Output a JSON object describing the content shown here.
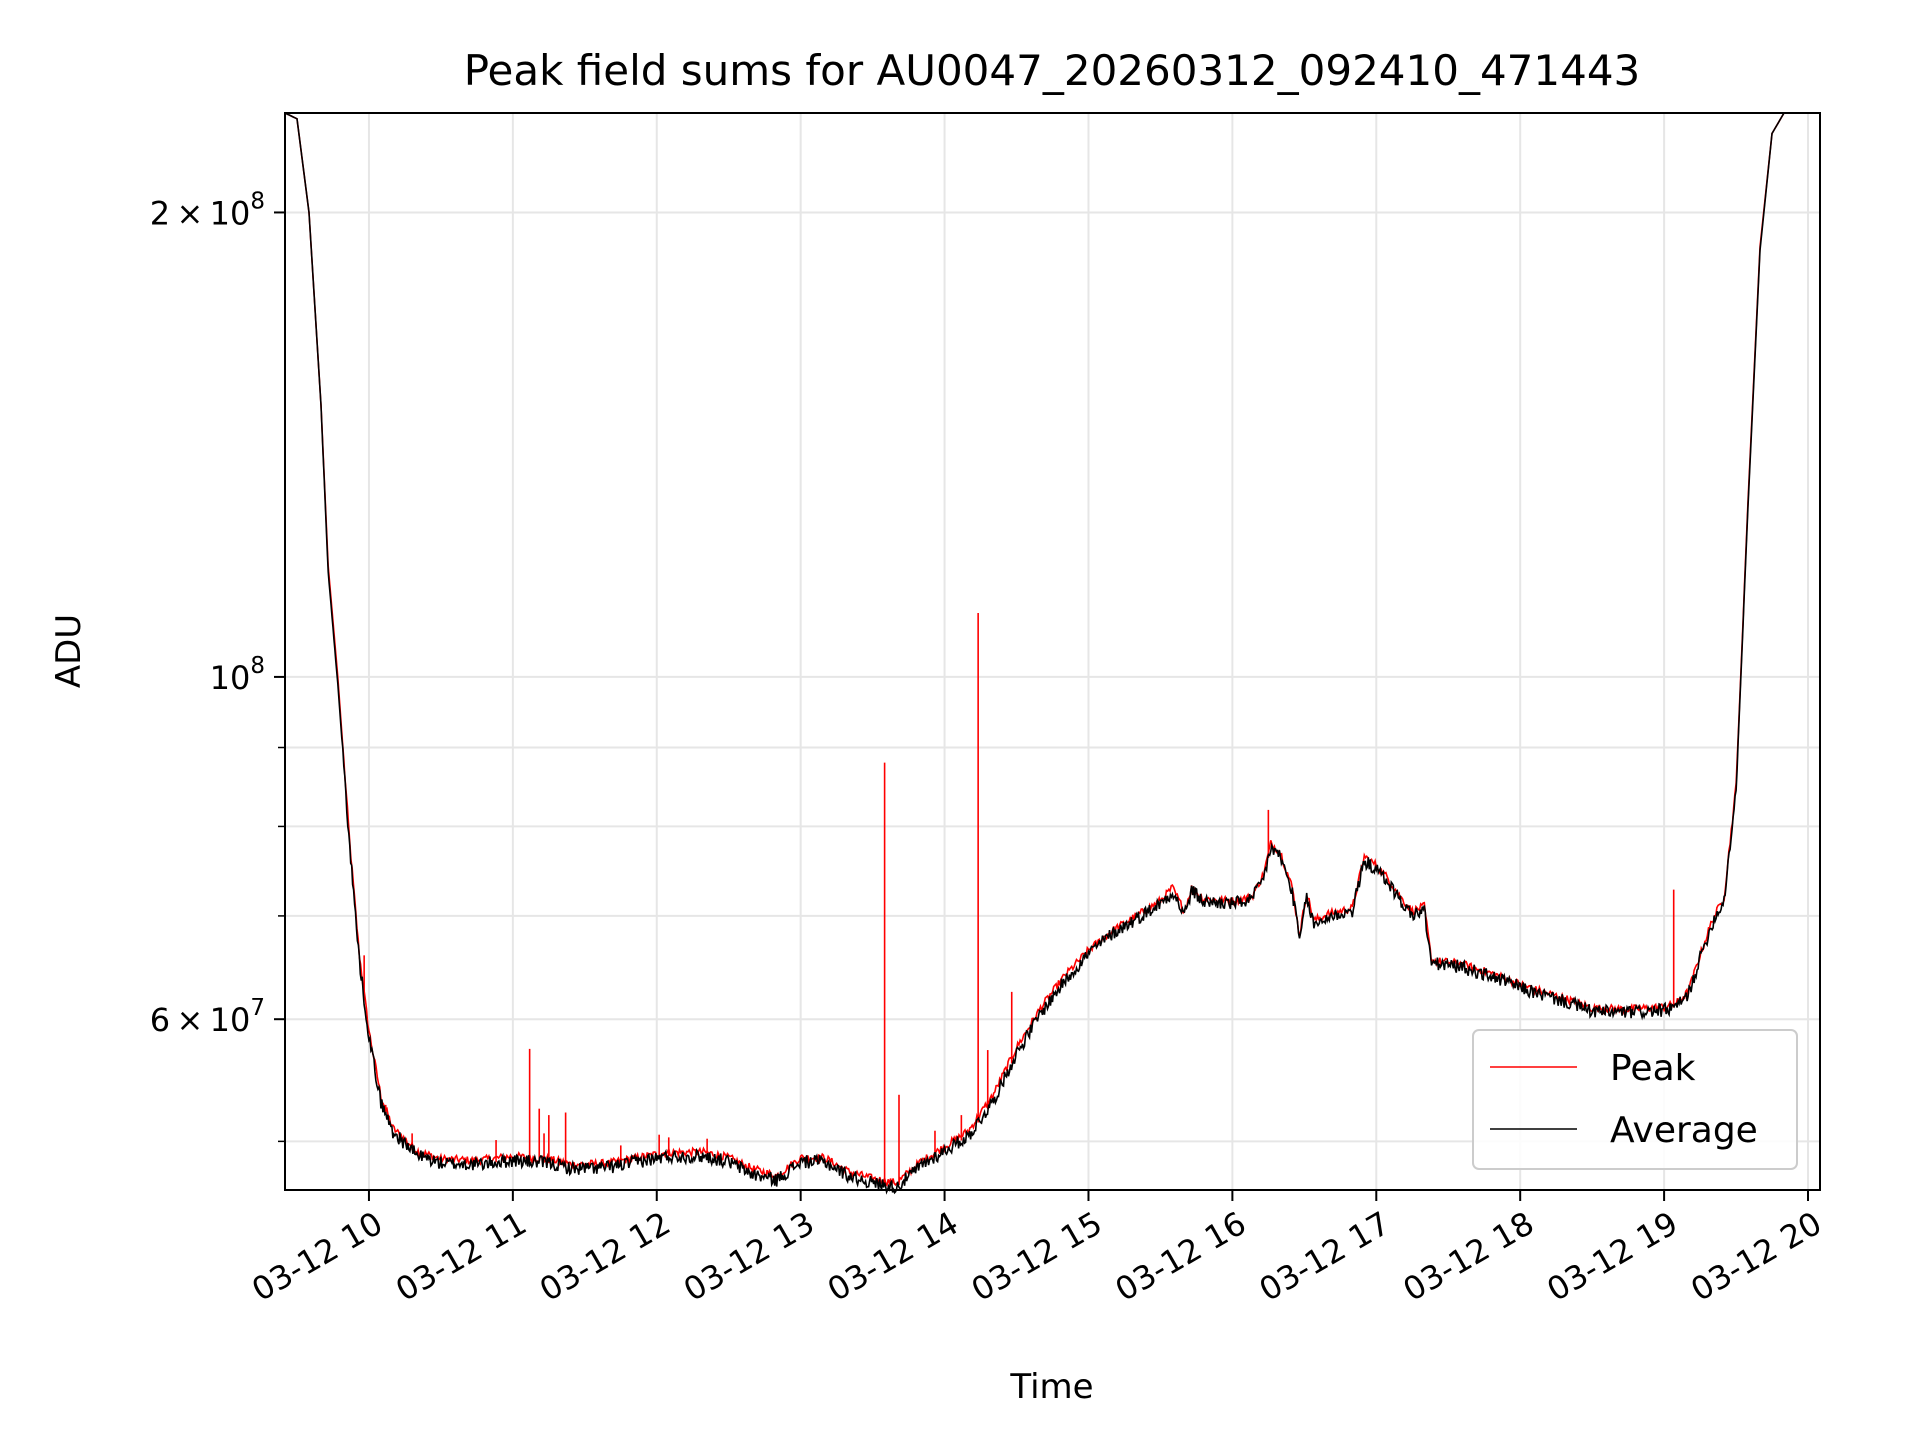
{
  "chart_data": {
    "type": "line",
    "title": "Peak field sums for AU0047_20260312_092410_471443",
    "xlabel": "Time",
    "ylabel": "ADU",
    "x_axis": {
      "kind": "datetime",
      "range": [
        "2026-03-12 09:25",
        "2026-03-12 20:05"
      ],
      "tick_values": [
        "2026-03-12 10:00",
        "2026-03-12 11:00",
        "2026-03-12 12:00",
        "2026-03-12 13:00",
        "2026-03-12 14:00",
        "2026-03-12 15:00",
        "2026-03-12 16:00",
        "2026-03-12 17:00",
        "2026-03-12 18:00",
        "2026-03-12 19:00",
        "2026-03-12 20:00"
      ],
      "tick_labels": [
        "03-12 10",
        "03-12 11",
        "03-12 12",
        "03-12 13",
        "03-12 14",
        "03-12 15",
        "03-12 16",
        "03-12 17",
        "03-12 18",
        "03-12 19",
        "03-12 20"
      ]
    },
    "y_axis": {
      "scale": "log",
      "range": [
        46500000,
        232000000
      ],
      "major_ticks": [
        60000000,
        100000000,
        200000000
      ],
      "major_tick_labels": [
        {
          "mant": "6",
          "exp": "7"
        },
        {
          "mant": "",
          "exp": "8"
        },
        {
          "mant": "2",
          "exp": "8"
        }
      ],
      "minor_ticks": [
        50000000,
        70000000,
        80000000,
        90000000
      ]
    },
    "grid": true,
    "legend": "lower right",
    "series": [
      {
        "name": "Peak",
        "color": "#ff0000",
        "points": [
          [
            "2026-03-12 09:25",
            232000000
          ],
          [
            "2026-03-12 09:30",
            230000000
          ],
          [
            "2026-03-12 09:35",
            200000000
          ],
          [
            "2026-03-12 09:40",
            150000000
          ],
          [
            "2026-03-12 09:43",
            118000000
          ],
          [
            "2026-03-12 09:47",
            100000000
          ],
          [
            "2026-03-12 09:52",
            78000000
          ],
          [
            "2026-03-12 09:56",
            66000000
          ],
          [
            "2026-03-12 10:00",
            59000000
          ],
          [
            "2026-03-12 10:05",
            53500000
          ],
          [
            "2026-03-12 10:10",
            51000000
          ],
          [
            "2026-03-12 10:20",
            49300000
          ],
          [
            "2026-03-12 10:30",
            48700000
          ],
          [
            "2026-03-12 10:45",
            48600000
          ],
          [
            "2026-03-12 11:00",
            48900000
          ],
          [
            "2026-03-12 11:15",
            48700000
          ],
          [
            "2026-03-12 11:25",
            48300000
          ],
          [
            "2026-03-12 11:40",
            48400000
          ],
          [
            "2026-03-12 11:55",
            48900000
          ],
          [
            "2026-03-12 12:05",
            49200000
          ],
          [
            "2026-03-12 12:20",
            49200000
          ],
          [
            "2026-03-12 12:30",
            48800000
          ],
          [
            "2026-03-12 12:40",
            48000000
          ],
          [
            "2026-03-12 12:50",
            47500000
          ],
          [
            "2026-03-12 13:00",
            48800000
          ],
          [
            "2026-03-12 13:10",
            48800000
          ],
          [
            "2026-03-12 13:20",
            47800000
          ],
          [
            "2026-03-12 13:30",
            47300000
          ],
          [
            "2026-03-12 13:40",
            47000000
          ],
          [
            "2026-03-12 13:50",
            48500000
          ],
          [
            "2026-03-12 14:00",
            49600000
          ],
          [
            "2026-03-12 14:10",
            50800000
          ],
          [
            "2026-03-12 14:20",
            53500000
          ],
          [
            "2026-03-12 14:30",
            57500000
          ],
          [
            "2026-03-12 14:40",
            61000000
          ],
          [
            "2026-03-12 14:50",
            64000000
          ],
          [
            "2026-03-12 15:00",
            66500000
          ],
          [
            "2026-03-12 15:10",
            68500000
          ],
          [
            "2026-03-12 15:20",
            70000000
          ],
          [
            "2026-03-12 15:30",
            71600000
          ],
          [
            "2026-03-12 15:35",
            73000000
          ],
          [
            "2026-03-12 15:40",
            70500000
          ],
          [
            "2026-03-12 15:43",
            73000000
          ],
          [
            "2026-03-12 15:48",
            71800000
          ],
          [
            "2026-03-12 16:00",
            71600000
          ],
          [
            "2026-03-12 16:08",
            72000000
          ],
          [
            "2026-03-12 16:13",
            74500000
          ],
          [
            "2026-03-12 16:16",
            78000000
          ],
          [
            "2026-03-12 16:20",
            77000000
          ],
          [
            "2026-03-12 16:25",
            73000000
          ],
          [
            "2026-03-12 16:28",
            68000000
          ],
          [
            "2026-03-12 16:31",
            72500000
          ],
          [
            "2026-03-12 16:34",
            69500000
          ],
          [
            "2026-03-12 16:40",
            70200000
          ],
          [
            "2026-03-12 16:50",
            70800000
          ],
          [
            "2026-03-12 16:55",
            76500000
          ],
          [
            "2026-03-12 17:00",
            75500000
          ],
          [
            "2026-03-12 17:05",
            74000000
          ],
          [
            "2026-03-12 17:10",
            72000000
          ],
          [
            "2026-03-12 17:15",
            70500000
          ],
          [
            "2026-03-12 17:20",
            71000000
          ],
          [
            "2026-03-12 17:23",
            65500000
          ],
          [
            "2026-03-12 17:35",
            65200000
          ],
          [
            "2026-03-12 17:50",
            64100000
          ],
          [
            "2026-03-12 18:05",
            62800000
          ],
          [
            "2026-03-12 18:20",
            61800000
          ],
          [
            "2026-03-12 18:30",
            61000000
          ],
          [
            "2026-03-12 18:45",
            60900000
          ],
          [
            "2026-03-12 19:00",
            61100000
          ],
          [
            "2026-03-12 19:05",
            61400000
          ],
          [
            "2026-03-12 19:10",
            62500000
          ],
          [
            "2026-03-12 19:15",
            66000000
          ],
          [
            "2026-03-12 19:20",
            69500000
          ],
          [
            "2026-03-12 19:25",
            72000000
          ],
          [
            "2026-03-12 19:30",
            85000000
          ],
          [
            "2026-03-12 19:35",
            130000000
          ],
          [
            "2026-03-12 19:40",
            190000000
          ],
          [
            "2026-03-12 19:45",
            225000000
          ],
          [
            "2026-03-12 19:50",
            232000000
          ],
          [
            "2026-03-12 20:05",
            232000000
          ]
        ],
        "spikes": [
          [
            "2026-03-12 09:58",
            66000000
          ],
          [
            "2026-03-12 10:07",
            52800000
          ],
          [
            "2026-03-12 10:18",
            50600000
          ],
          [
            "2026-03-12 10:53",
            50100000
          ],
          [
            "2026-03-12 11:07",
            57400000
          ],
          [
            "2026-03-12 11:11",
            52500000
          ],
          [
            "2026-03-12 11:13",
            50600000
          ],
          [
            "2026-03-12 11:15",
            52000000
          ],
          [
            "2026-03-12 11:22",
            52200000
          ],
          [
            "2026-03-12 11:45",
            49700000
          ],
          [
            "2026-03-12 12:01",
            50500000
          ],
          [
            "2026-03-12 12:05",
            50300000
          ],
          [
            "2026-03-12 12:21",
            50200000
          ],
          [
            "2026-03-12 13:35",
            88000000
          ],
          [
            "2026-03-12 13:41",
            53600000
          ],
          [
            "2026-03-12 13:56",
            50800000
          ],
          [
            "2026-03-12 14:07",
            52000000
          ],
          [
            "2026-03-12 14:14",
            110000000
          ],
          [
            "2026-03-12 14:18",
            57300000
          ],
          [
            "2026-03-12 14:28",
            62500000
          ],
          [
            "2026-03-12 16:15",
            82000000
          ],
          [
            "2026-03-12 19:04",
            72800000
          ]
        ]
      },
      {
        "name": "Average",
        "color": "#000000",
        "points": [
          [
            "2026-03-12 09:25",
            232000000
          ],
          [
            "2026-03-12 09:30",
            230000000
          ],
          [
            "2026-03-12 09:35",
            200000000
          ],
          [
            "2026-03-12 09:40",
            150000000
          ],
          [
            "2026-03-12 09:43",
            117000000
          ],
          [
            "2026-03-12 09:47",
            99000000
          ],
          [
            "2026-03-12 09:52",
            77500000
          ],
          [
            "2026-03-12 09:56",
            65500000
          ],
          [
            "2026-03-12 10:00",
            58500000
          ],
          [
            "2026-03-12 10:05",
            53000000
          ],
          [
            "2026-03-12 10:10",
            50700000
          ],
          [
            "2026-03-12 10:20",
            49000000
          ],
          [
            "2026-03-12 10:30",
            48400000
          ],
          [
            "2026-03-12 10:45",
            48300000
          ],
          [
            "2026-03-12 11:00",
            48600000
          ],
          [
            "2026-03-12 11:15",
            48400000
          ],
          [
            "2026-03-12 11:25",
            48000000
          ],
          [
            "2026-03-12 11:40",
            48100000
          ],
          [
            "2026-03-12 11:55",
            48600000
          ],
          [
            "2026-03-12 12:05",
            48900000
          ],
          [
            "2026-03-12 12:20",
            48900000
          ],
          [
            "2026-03-12 12:30",
            48500000
          ],
          [
            "2026-03-12 12:40",
            47600000
          ],
          [
            "2026-03-12 12:50",
            47200000
          ],
          [
            "2026-03-12 13:00",
            48500000
          ],
          [
            "2026-03-12 13:10",
            48500000
          ],
          [
            "2026-03-12 13:20",
            47500000
          ],
          [
            "2026-03-12 13:30",
            47000000
          ],
          [
            "2026-03-12 13:40",
            46700000
          ],
          [
            "2026-03-12 13:50",
            48200000
          ],
          [
            "2026-03-12 14:00",
            49300000
          ],
          [
            "2026-03-12 14:10",
            50400000
          ],
          [
            "2026-03-12 14:20",
            53000000
          ],
          [
            "2026-03-12 14:30",
            57000000
          ],
          [
            "2026-03-12 14:40",
            60500000
          ],
          [
            "2026-03-12 14:50",
            63500000
          ],
          [
            "2026-03-12 15:00",
            66200000
          ],
          [
            "2026-03-12 15:10",
            68200000
          ],
          [
            "2026-03-12 15:20",
            69700000
          ],
          [
            "2026-03-12 15:30",
            71300000
          ],
          [
            "2026-03-12 15:35",
            72600000
          ],
          [
            "2026-03-12 15:40",
            70100000
          ],
          [
            "2026-03-12 15:43",
            72700000
          ],
          [
            "2026-03-12 15:48",
            71500000
          ],
          [
            "2026-03-12 16:00",
            71300000
          ],
          [
            "2026-03-12 16:08",
            71700000
          ],
          [
            "2026-03-12 16:13",
            74000000
          ],
          [
            "2026-03-12 16:16",
            77500000
          ],
          [
            "2026-03-12 16:20",
            76500000
          ],
          [
            "2026-03-12 16:25",
            72500000
          ],
          [
            "2026-03-12 16:28",
            67500000
          ],
          [
            "2026-03-12 16:31",
            72000000
          ],
          [
            "2026-03-12 16:34",
            69000000
          ],
          [
            "2026-03-12 16:40",
            69900000
          ],
          [
            "2026-03-12 16:50",
            70500000
          ],
          [
            "2026-03-12 16:55",
            76000000
          ],
          [
            "2026-03-12 17:00",
            75000000
          ],
          [
            "2026-03-12 17:05",
            73600000
          ],
          [
            "2026-03-12 17:10",
            71600000
          ],
          [
            "2026-03-12 17:15",
            70100000
          ],
          [
            "2026-03-12 17:20",
            70600000
          ],
          [
            "2026-03-12 17:23",
            65200000
          ],
          [
            "2026-03-12 17:35",
            64900000
          ],
          [
            "2026-03-12 17:50",
            63800000
          ],
          [
            "2026-03-12 18:05",
            62500000
          ],
          [
            "2026-03-12 18:20",
            61500000
          ],
          [
            "2026-03-12 18:30",
            60700000
          ],
          [
            "2026-03-12 18:45",
            60600000
          ],
          [
            "2026-03-12 19:00",
            60800000
          ],
          [
            "2026-03-12 19:05",
            61100000
          ],
          [
            "2026-03-12 19:10",
            62200000
          ],
          [
            "2026-03-12 19:15",
            65700000
          ],
          [
            "2026-03-12 19:20",
            69200000
          ],
          [
            "2026-03-12 19:25",
            71700000
          ],
          [
            "2026-03-12 19:30",
            84500000
          ],
          [
            "2026-03-12 19:35",
            129000000
          ],
          [
            "2026-03-12 19:40",
            189000000
          ],
          [
            "2026-03-12 19:45",
            225000000
          ],
          [
            "2026-03-12 19:50",
            232000000
          ],
          [
            "2026-03-12 20:05",
            232000000
          ]
        ]
      }
    ]
  }
}
